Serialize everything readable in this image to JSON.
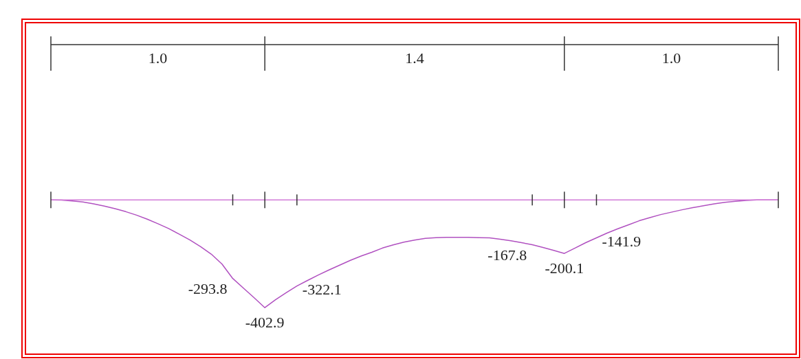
{
  "chart_data": {
    "type": "line",
    "categories": [
      null,
      null,
      null,
      null,
      null,
      null,
      null,
      null,
      null,
      null,
      null,
      null,
      null,
      null,
      null,
      null,
      null,
      null,
      null,
      null,
      null,
      null,
      null,
      null,
      null,
      null,
      null,
      null,
      null,
      null,
      null,
      null,
      null,
      null,
      null,
      null,
      null,
      null,
      null,
      null,
      null,
      null,
      null,
      null,
      null,
      null,
      null,
      null,
      null,
      null,
      null,
      null,
      null,
      null,
      null,
      null,
      null,
      null,
      null,
      null,
      null,
      null,
      null,
      null,
      null,
      null,
      null,
      null,
      null
    ],
    "series": [
      {
        "color": "#b050c0",
        "values": [
          0,
          -1,
          -4,
          -8,
          -15,
          -23,
          -33,
          -44,
          -57,
          -72,
          -89,
          -107,
          -128,
          -150,
          -175,
          -203,
          -240,
          -293.8,
          -330,
          -366,
          -402.9,
          -373,
          -347,
          -322.1,
          -301,
          -281,
          -262,
          -244,
          -226,
          -210,
          -196,
          -180,
          -168,
          -158,
          -150,
          -144,
          -141,
          -140,
          -140,
          -140,
          -141,
          -142,
          -147,
          -153,
          -160,
          -167.8,
          -178,
          -189,
          -200.1,
          -180,
          -160,
          -141.9,
          -124,
          -108,
          -93,
          -78,
          -66,
          -55,
          -46,
          -37,
          -29,
          -22,
          -15,
          -9,
          -5,
          -2,
          0,
          0,
          0
        ],
        "value_labels": [
          null,
          null,
          null,
          null,
          null,
          null,
          null,
          null,
          null,
          null,
          null,
          null,
          null,
          null,
          null,
          null,
          null,
          "-293.8",
          null,
          null,
          "-402.9",
          null,
          null,
          "-322.1",
          null,
          null,
          null,
          null,
          null,
          null,
          null,
          null,
          null,
          null,
          null,
          null,
          null,
          null,
          null,
          null,
          null,
          null,
          null,
          null,
          null,
          "-167.8",
          null,
          null,
          "-200.1",
          null,
          null,
          "-141.9",
          null,
          null,
          null,
          null,
          null,
          null,
          null,
          null,
          null,
          null,
          null,
          null,
          null,
          null,
          null,
          null,
          null
        ]
      }
    ],
    "annotations": [
      "1.0",
      "1.4",
      "1.0"
    ]
  }
}
